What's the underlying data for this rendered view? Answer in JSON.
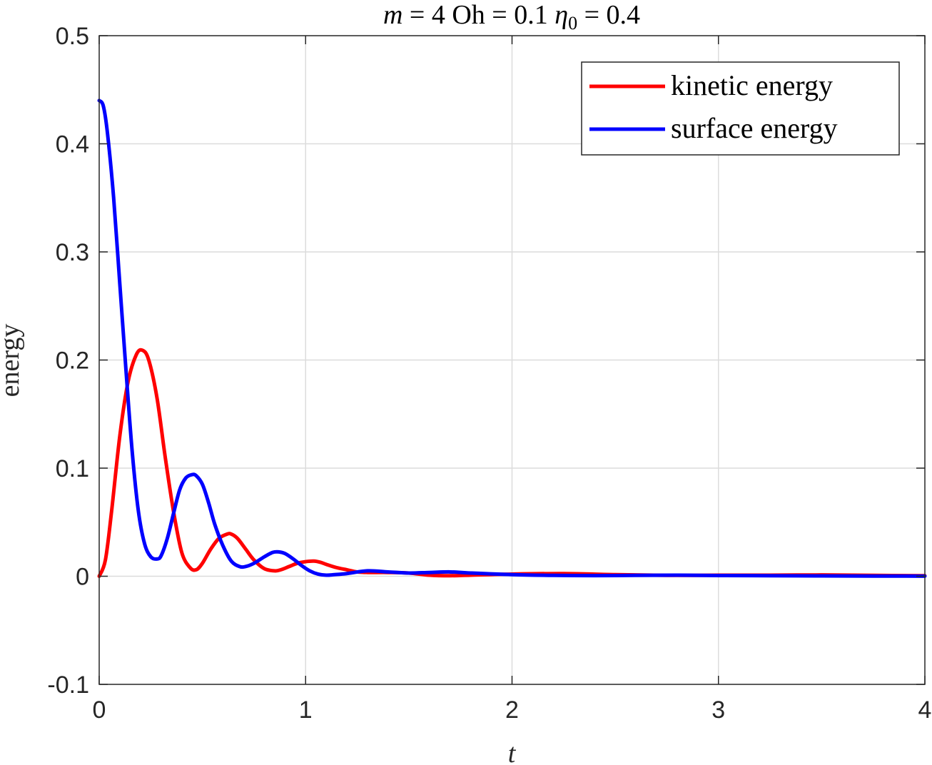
{
  "chart_data": {
    "type": "line",
    "title": "m = 4 Oh = 0.1 η0 = 0.4",
    "title_parts": {
      "m_symbol": "m",
      "m_eq": " = 4 Oh = 0.1 ",
      "eta_symbol": "η",
      "eta_sub": "0",
      "eta_eq": " = 0.4"
    },
    "xlabel": "t",
    "ylabel": "energy",
    "xlim": [
      0,
      4
    ],
    "ylim": [
      -0.1,
      0.5
    ],
    "xticks": [
      0,
      1,
      2,
      3,
      4
    ],
    "xtick_labels": [
      "0",
      "1",
      "2",
      "3",
      "4"
    ],
    "yticks": [
      -0.1,
      0,
      0.1,
      0.2,
      0.3,
      0.4,
      0.5
    ],
    "ytick_labels": [
      "-0.1",
      "0",
      "0.1",
      "0.2",
      "0.3",
      "0.4",
      "0.5"
    ],
    "grid": true,
    "legend_position": "top-right",
    "series": [
      {
        "name": "kinetic energy",
        "color": "#ff0000",
        "x": [
          0,
          0.03,
          0.06,
          0.1,
          0.14,
          0.18,
          0.21,
          0.24,
          0.28,
          0.32,
          0.36,
          0.4,
          0.44,
          0.47,
          0.5,
          0.54,
          0.58,
          0.62,
          0.64,
          0.67,
          0.71,
          0.75,
          0.8,
          0.85,
          0.88,
          0.92,
          0.96,
          1.0,
          1.04,
          1.07,
          1.1,
          1.15,
          1.2,
          1.25,
          1.3,
          1.4,
          1.5,
          1.6,
          1.7,
          1.8,
          2.0,
          2.25,
          2.5,
          2.75,
          3.0,
          3.25,
          3.5,
          3.75,
          4.0
        ],
        "y": [
          0,
          0.015,
          0.06,
          0.13,
          0.18,
          0.205,
          0.209,
          0.2,
          0.165,
          0.11,
          0.06,
          0.022,
          0.008,
          0.006,
          0.012,
          0.025,
          0.035,
          0.039,
          0.039,
          0.035,
          0.025,
          0.015,
          0.007,
          0.005,
          0.006,
          0.009,
          0.012,
          0.0135,
          0.014,
          0.013,
          0.011,
          0.008,
          0.006,
          0.004,
          0.0035,
          0.0035,
          0.003,
          0.001,
          0.0005,
          0.001,
          0.002,
          0.0025,
          0.0015,
          0.0008,
          0.001,
          0.001,
          0.0012,
          0.0008,
          0.0005
        ]
      },
      {
        "name": "surface energy",
        "color": "#0000ff",
        "x": [
          0,
          0.02,
          0.04,
          0.07,
          0.1,
          0.13,
          0.16,
          0.19,
          0.22,
          0.25,
          0.28,
          0.3,
          0.33,
          0.36,
          0.39,
          0.42,
          0.45,
          0.47,
          0.5,
          0.53,
          0.56,
          0.6,
          0.64,
          0.68,
          0.71,
          0.75,
          0.8,
          0.84,
          0.87,
          0.9,
          0.94,
          0.98,
          1.02,
          1.06,
          1.1,
          1.14,
          1.2,
          1.3,
          1.4,
          1.5,
          1.6,
          1.7,
          1.8,
          2.0,
          2.2,
          2.4,
          2.6,
          2.8,
          3.0,
          3.25,
          3.5,
          3.75,
          4.0
        ],
        "y": [
          0.44,
          0.435,
          0.41,
          0.35,
          0.27,
          0.19,
          0.115,
          0.06,
          0.03,
          0.018,
          0.016,
          0.019,
          0.035,
          0.058,
          0.08,
          0.091,
          0.094,
          0.093,
          0.085,
          0.068,
          0.048,
          0.028,
          0.014,
          0.009,
          0.009,
          0.012,
          0.018,
          0.022,
          0.0225,
          0.021,
          0.016,
          0.01,
          0.005,
          0.002,
          0.001,
          0.0015,
          0.0025,
          0.005,
          0.004,
          0.003,
          0.0035,
          0.004,
          0.003,
          0.0015,
          0.0008,
          0.0006,
          0.0008,
          0.001,
          0.0007,
          0.0005,
          0.0003,
          0.0002,
          0.0001
        ]
      }
    ]
  }
}
